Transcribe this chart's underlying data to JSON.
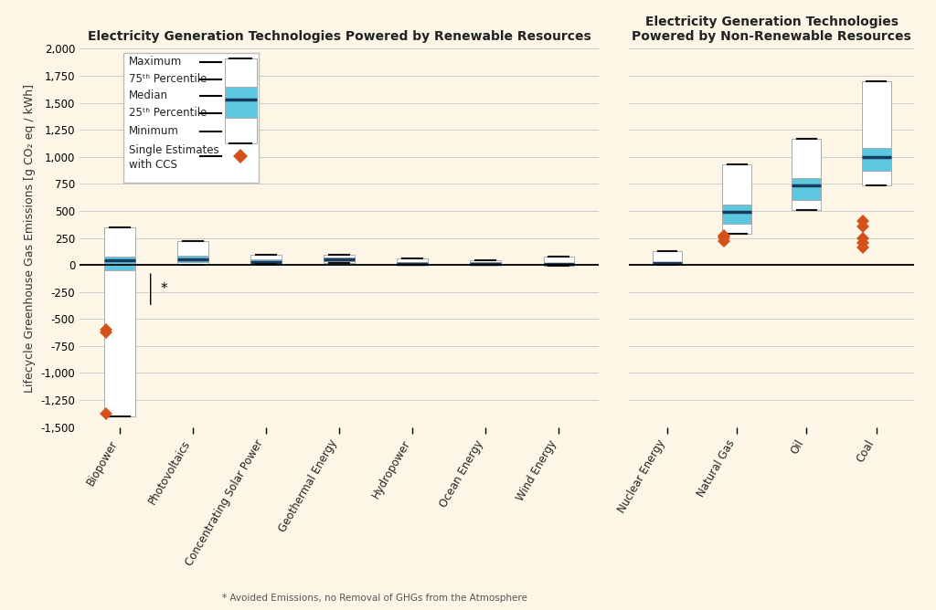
{
  "title_left": "Electricity Generation Technologies Powered by Renewable Resources",
  "title_right": "Electricity Generation Technologies\nPowered by Non-Renewable Resources",
  "ylabel": "Lifecycle Greenhouse Gas Emissions [g CO₂ eq / kWh]",
  "ylim": [
    -1500,
    2000
  ],
  "yticks": [
    -1500,
    -1250,
    -1000,
    -750,
    -500,
    -250,
    0,
    250,
    500,
    750,
    1000,
    1250,
    1500,
    1750,
    2000
  ],
  "background_color": "#fdf5e6",
  "box_color_outer": "#ffffff",
  "box_color_iqr": "#5bc8e0",
  "median_color": "#1a3a5c",
  "line_color": "#111111",
  "ccs_color": "#d4521a",
  "renewable": [
    {
      "label": "Biopower",
      "min": -1400,
      "p25": -50,
      "median": 46,
      "p75": 80,
      "max": 350,
      "ccs": [
        -600,
        -625,
        -1380
      ]
    },
    {
      "label": "Photovoltaics",
      "min": 0,
      "p25": 26,
      "median": 50,
      "p75": 82,
      "max": 220,
      "ccs": []
    },
    {
      "label": "Concentrating Solar Power",
      "min": 7,
      "p25": 14,
      "median": 22,
      "p75": 50,
      "max": 90,
      "ccs": []
    },
    {
      "label": "Geothermal Energy",
      "min": 15,
      "p25": 31,
      "median": 55,
      "p75": 71,
      "max": 90,
      "ccs": []
    },
    {
      "label": "Hydropower",
      "min": 1,
      "p25": 4,
      "median": 10,
      "p75": 30,
      "max": 60,
      "ccs": []
    },
    {
      "label": "Ocean Energy",
      "min": 5,
      "p25": 8,
      "median": 12,
      "p75": 23,
      "max": 40,
      "ccs": []
    },
    {
      "label": "Wind Energy",
      "min": -10,
      "p25": 7,
      "median": 11,
      "p75": 20,
      "max": 80,
      "ccs": []
    }
  ],
  "nonrenewable": [
    {
      "label": "Nuclear Energy",
      "min": 3,
      "p25": 8,
      "median": 16,
      "p75": 30,
      "max": 130,
      "ccs": []
    },
    {
      "label": "Natural Gas",
      "min": 290,
      "p25": 380,
      "median": 490,
      "p75": 560,
      "max": 930,
      "ccs": [
        220,
        252,
        270
      ]
    },
    {
      "label": "Oil",
      "min": 510,
      "p25": 600,
      "median": 740,
      "p75": 800,
      "max": 1170,
      "ccs": []
    },
    {
      "label": "Coal",
      "min": 740,
      "p25": 870,
      "median": 1000,
      "p75": 1080,
      "max": 1700,
      "ccs": [
        160,
        200,
        250,
        360,
        410
      ]
    }
  ],
  "footnote": "* Avoided Emissions, no Removal of GHGs from the Atmosphere"
}
